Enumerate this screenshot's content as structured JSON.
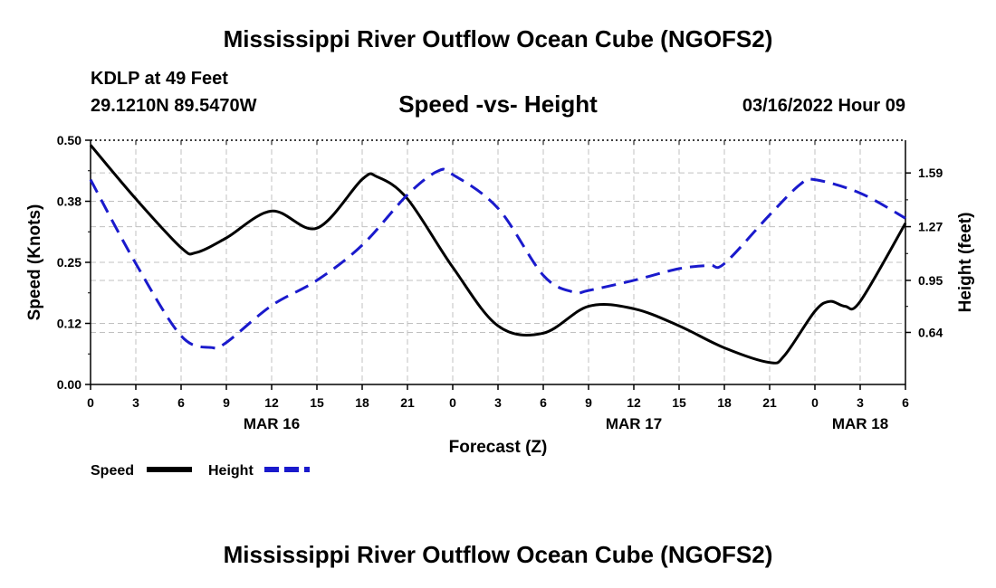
{
  "header": {
    "title": "Mississippi River Outflow Ocean Cube (NGOFS2)",
    "station": "KDLP at 49 Feet",
    "coords": "29.1210N  89.5470W",
    "subtitle": "Speed -vs- Height",
    "datetime": "03/16/2022 Hour 09"
  },
  "footer": {
    "title": "Mississippi River Outflow Ocean Cube (NGOFS2)"
  },
  "chart_data": {
    "type": "line",
    "title": "Speed -vs- Height",
    "xlabel": "Forecast (Z)",
    "ylabel": "Speed (Knots)",
    "y2label": "Height (feet)",
    "x_ticks": [
      "0",
      "3",
      "6",
      "9",
      "12",
      "15",
      "18",
      "21",
      "0",
      "3",
      "6",
      "9",
      "12",
      "15",
      "18",
      "21",
      "0",
      "3",
      "6"
    ],
    "x_tick_hours": [
      0,
      3,
      6,
      9,
      12,
      15,
      18,
      21,
      24,
      27,
      30,
      33,
      36,
      39,
      42,
      45,
      48,
      51,
      54
    ],
    "date_labels": [
      {
        "label": "MAR 16",
        "hour": 12
      },
      {
        "label": "MAR 17",
        "hour": 36
      },
      {
        "label": "MAR 18",
        "hour": 51
      }
    ],
    "xlim": [
      0,
      54
    ],
    "ylim": [
      0,
      0.5
    ],
    "y_ticks": [
      "0.00",
      "0.12",
      "0.25",
      "0.38",
      "0.50"
    ],
    "y_tick_values": [
      0,
      0.125,
      0.25,
      0.375,
      0.5
    ],
    "y2lim": [
      0.33,
      1.785
    ],
    "y2_ticks": [
      "0.64",
      "0.95",
      "1.27",
      "1.59"
    ],
    "y2_tick_values": [
      0.64,
      0.95,
      1.27,
      1.59
    ],
    "grid": true,
    "legend_position": "bottom-left",
    "series": [
      {
        "name": "Speed",
        "axis": "left",
        "style": "solid",
        "color": "#000000",
        "x": [
          0,
          3,
          6,
          7,
          9,
          12,
          15,
          18,
          19,
          21,
          24,
          27,
          30,
          33,
          36,
          39,
          42,
          45,
          46,
          48,
          49,
          50,
          51,
          54
        ],
        "values": [
          0.49,
          0.38,
          0.28,
          0.27,
          0.3,
          0.355,
          0.32,
          0.42,
          0.425,
          0.38,
          0.24,
          0.12,
          0.105,
          0.16,
          0.155,
          0.12,
          0.075,
          0.045,
          0.06,
          0.15,
          0.17,
          0.16,
          0.17,
          0.33
        ]
      },
      {
        "name": "Height",
        "axis": "right",
        "style": "dashed",
        "color": "#1a1acc",
        "x": [
          0,
          3,
          6,
          8,
          9,
          12,
          15,
          18,
          21,
          23,
          24,
          27,
          30,
          32,
          33,
          36,
          39,
          41,
          42,
          45,
          47,
          48,
          51,
          54
        ],
        "values": [
          1.55,
          1.05,
          0.62,
          0.55,
          0.58,
          0.8,
          0.95,
          1.16,
          1.46,
          1.6,
          1.58,
          1.38,
          0.98,
          0.88,
          0.89,
          0.95,
          1.02,
          1.04,
          1.05,
          1.34,
          1.52,
          1.55,
          1.47,
          1.32
        ]
      }
    ]
  }
}
